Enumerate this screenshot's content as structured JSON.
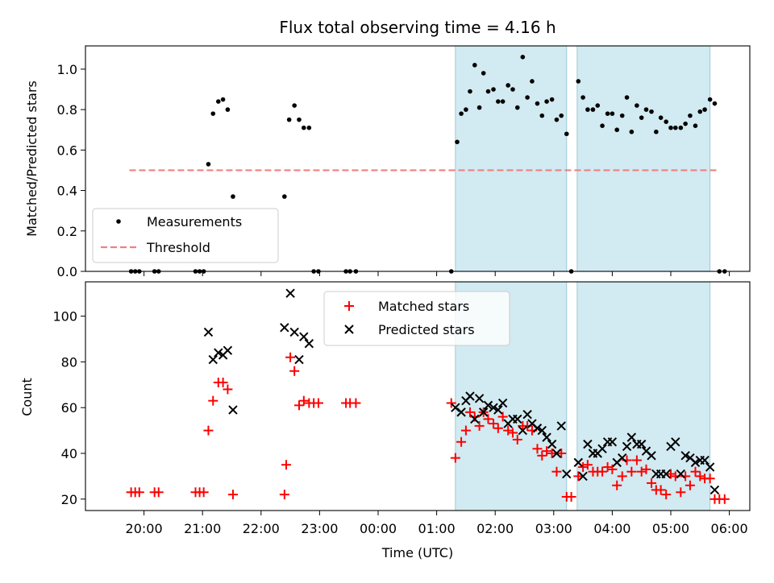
{
  "chart_data": {
    "title": "Flux total observing time = 4.16 h",
    "xlabel": "Time (UTC)",
    "x_ticks": [
      "20:00",
      "21:00",
      "22:00",
      "23:00",
      "00:00",
      "01:00",
      "02:00",
      "03:00",
      "04:00",
      "05:00",
      "06:00"
    ],
    "x_tick_hours": [
      20,
      21,
      22,
      23,
      24,
      25,
      26,
      27,
      28,
      29,
      30
    ],
    "xlim_hours": [
      19.0,
      30.35
    ],
    "shaded_intervals_hours": [
      [
        25.32,
        27.22
      ],
      [
        27.4,
        29.67
      ]
    ],
    "shade_color": "#add8e6",
    "panels": [
      {
        "id": "ratio",
        "type": "scatter",
        "ylabel": "Matched/Predicted stars",
        "ylim": [
          0,
          1.115
        ],
        "y_ticks": [
          0.0,
          0.2,
          0.4,
          0.6,
          0.8,
          1.0
        ],
        "y_tick_labels": [
          "0.0",
          "0.2",
          "0.4",
          "0.6",
          "0.8",
          "1.0"
        ],
        "legend_position": "lower-left",
        "threshold": {
          "name": "Threshold",
          "value": 0.5,
          "x_range": [
            19.75,
            29.83
          ],
          "color": "#f08080"
        },
        "measurements": {
          "name": "Measurements",
          "color": "#000000",
          "points": [
            [
              19.78,
              0
            ],
            [
              19.85,
              0
            ],
            [
              19.92,
              0
            ],
            [
              20.18,
              0
            ],
            [
              20.25,
              0
            ],
            [
              20.88,
              0
            ],
            [
              20.95,
              0
            ],
            [
              21.02,
              0
            ],
            [
              21.1,
              0.53
            ],
            [
              21.18,
              0.78
            ],
            [
              21.27,
              0.84
            ],
            [
              21.35,
              0.85
            ],
            [
              21.43,
              0.8
            ],
            [
              21.52,
              0.37
            ],
            [
              22.4,
              0.37
            ],
            [
              22.48,
              0.75
            ],
            [
              22.57,
              0.82
            ],
            [
              22.65,
              0.75
            ],
            [
              22.73,
              0.71
            ],
            [
              22.82,
              0.71
            ],
            [
              22.9,
              0
            ],
            [
              22.98,
              0
            ],
            [
              23.45,
              0
            ],
            [
              23.52,
              0
            ],
            [
              23.62,
              0
            ],
            [
              25.25,
              0
            ],
            [
              25.35,
              0.64
            ],
            [
              25.42,
              0.78
            ],
            [
              25.5,
              0.8
            ],
            [
              25.57,
              0.89
            ],
            [
              25.65,
              1.02
            ],
            [
              25.73,
              0.81
            ],
            [
              25.8,
              0.98
            ],
            [
              25.88,
              0.89
            ],
            [
              25.97,
              0.9
            ],
            [
              26.05,
              0.84
            ],
            [
              26.13,
              0.84
            ],
            [
              26.22,
              0.92
            ],
            [
              26.3,
              0.9
            ],
            [
              26.38,
              0.81
            ],
            [
              26.47,
              1.06
            ],
            [
              26.55,
              0.86
            ],
            [
              26.63,
              0.94
            ],
            [
              26.72,
              0.83
            ],
            [
              26.8,
              0.77
            ],
            [
              26.88,
              0.84
            ],
            [
              26.97,
              0.85
            ],
            [
              27.05,
              0.75
            ],
            [
              27.13,
              0.77
            ],
            [
              27.22,
              0.68
            ],
            [
              27.3,
              0
            ],
            [
              27.42,
              0.94
            ],
            [
              27.5,
              0.86
            ],
            [
              27.58,
              0.8
            ],
            [
              27.67,
              0.8
            ],
            [
              27.75,
              0.82
            ],
            [
              27.83,
              0.72
            ],
            [
              27.92,
              0.78
            ],
            [
              28.0,
              0.78
            ],
            [
              28.08,
              0.7
            ],
            [
              28.17,
              0.77
            ],
            [
              28.25,
              0.86
            ],
            [
              28.33,
              0.69
            ],
            [
              28.42,
              0.82
            ],
            [
              28.5,
              0.76
            ],
            [
              28.58,
              0.8
            ],
            [
              28.67,
              0.79
            ],
            [
              28.75,
              0.69
            ],
            [
              28.83,
              0.76
            ],
            [
              28.92,
              0.74
            ],
            [
              29.0,
              0.71
            ],
            [
              29.08,
              0.71
            ],
            [
              29.17,
              0.71
            ],
            [
              29.25,
              0.73
            ],
            [
              29.33,
              0.77
            ],
            [
              29.42,
              0.72
            ],
            [
              29.5,
              0.79
            ],
            [
              29.58,
              0.8
            ],
            [
              29.67,
              0.85
            ],
            [
              29.75,
              0.83
            ],
            [
              29.83,
              0
            ],
            [
              29.92,
              0
            ]
          ]
        }
      },
      {
        "id": "count",
        "type": "scatter",
        "ylabel": "Count",
        "ylim": [
          15,
          115
        ],
        "y_ticks": [
          20,
          40,
          60,
          80,
          100
        ],
        "y_tick_labels": [
          "20",
          "40",
          "60",
          "80",
          "100"
        ],
        "legend_position": "top-center",
        "matched": {
          "name": "Matched stars",
          "color": "#ff0000",
          "points": [
            [
              19.78,
              23
            ],
            [
              19.85,
              23
            ],
            [
              19.92,
              23
            ],
            [
              20.18,
              23
            ],
            [
              20.25,
              23
            ],
            [
              20.88,
              23
            ],
            [
              20.95,
              23
            ],
            [
              21.02,
              23
            ],
            [
              21.1,
              50
            ],
            [
              21.18,
              63
            ],
            [
              21.27,
              71
            ],
            [
              21.35,
              71
            ],
            [
              21.43,
              68
            ],
            [
              21.52,
              22
            ],
            [
              22.4,
              22
            ],
            [
              22.43,
              35
            ],
            [
              22.5,
              82
            ],
            [
              22.57,
              76
            ],
            [
              22.65,
              61
            ],
            [
              22.73,
              63
            ],
            [
              22.82,
              62
            ],
            [
              22.9,
              62
            ],
            [
              22.98,
              62
            ],
            [
              23.45,
              62
            ],
            [
              23.52,
              62
            ],
            [
              23.62,
              62
            ],
            [
              25.25,
              62
            ],
            [
              25.32,
              38
            ],
            [
              25.42,
              45
            ],
            [
              25.5,
              50
            ],
            [
              25.57,
              58
            ],
            [
              25.65,
              56
            ],
            [
              25.73,
              52
            ],
            [
              25.8,
              58
            ],
            [
              25.88,
              55
            ],
            [
              25.97,
              53
            ],
            [
              26.05,
              51
            ],
            [
              26.13,
              56
            ],
            [
              26.22,
              50
            ],
            [
              26.3,
              49
            ],
            [
              26.38,
              46
            ],
            [
              26.47,
              52
            ],
            [
              26.55,
              52
            ],
            [
              26.63,
              50
            ],
            [
              26.72,
              42
            ],
            [
              26.8,
              39
            ],
            [
              26.88,
              41
            ],
            [
              26.97,
              40
            ],
            [
              27.05,
              32
            ],
            [
              27.13,
              40
            ],
            [
              27.22,
              21
            ],
            [
              27.3,
              21
            ],
            [
              27.42,
              30
            ],
            [
              27.5,
              34
            ],
            [
              27.58,
              35
            ],
            [
              27.67,
              32
            ],
            [
              27.75,
              32
            ],
            [
              27.83,
              32
            ],
            [
              27.92,
              34
            ],
            [
              28.0,
              33
            ],
            [
              28.08,
              26
            ],
            [
              28.17,
              30
            ],
            [
              28.25,
              37
            ],
            [
              28.33,
              32
            ],
            [
              28.42,
              37
            ],
            [
              28.5,
              32
            ],
            [
              28.58,
              33
            ],
            [
              28.67,
              27
            ],
            [
              28.75,
              24
            ],
            [
              28.83,
              24
            ],
            [
              28.92,
              22
            ],
            [
              29.0,
              31
            ],
            [
              29.08,
              30
            ],
            [
              29.17,
              23
            ],
            [
              29.25,
              30
            ],
            [
              29.33,
              26
            ],
            [
              29.42,
              32
            ],
            [
              29.5,
              30
            ],
            [
              29.58,
              29
            ],
            [
              29.67,
              29
            ],
            [
              29.75,
              20
            ],
            [
              29.83,
              20
            ],
            [
              29.92,
              20
            ]
          ]
        },
        "predicted": {
          "name": "Predicted stars",
          "color": "#000000",
          "points": [
            [
              21.1,
              93
            ],
            [
              21.18,
              81
            ],
            [
              21.27,
              84
            ],
            [
              21.35,
              83
            ],
            [
              21.43,
              85
            ],
            [
              21.52,
              59
            ],
            [
              22.4,
              95
            ],
            [
              22.5,
              110
            ],
            [
              22.57,
              93
            ],
            [
              22.65,
              81
            ],
            [
              22.73,
              91
            ],
            [
              22.82,
              88
            ],
            [
              25.32,
              60
            ],
            [
              25.42,
              58
            ],
            [
              25.5,
              63
            ],
            [
              25.57,
              65
            ],
            [
              25.65,
              55
            ],
            [
              25.73,
              64
            ],
            [
              25.8,
              58
            ],
            [
              25.88,
              61
            ],
            [
              25.97,
              60
            ],
            [
              26.05,
              59
            ],
            [
              26.13,
              62
            ],
            [
              26.22,
              53
            ],
            [
              26.3,
              55
            ],
            [
              26.38,
              55
            ],
            [
              26.47,
              50
            ],
            [
              26.55,
              57
            ],
            [
              26.63,
              53
            ],
            [
              26.72,
              51
            ],
            [
              26.8,
              50
            ],
            [
              26.88,
              47
            ],
            [
              26.97,
              44
            ],
            [
              27.05,
              40
            ],
            [
              27.13,
              52
            ],
            [
              27.22,
              31
            ],
            [
              27.42,
              36
            ],
            [
              27.5,
              30
            ],
            [
              27.58,
              44
            ],
            [
              27.67,
              40
            ],
            [
              27.75,
              40
            ],
            [
              27.83,
              42
            ],
            [
              27.92,
              45
            ],
            [
              28.0,
              45
            ],
            [
              28.08,
              36
            ],
            [
              28.17,
              38
            ],
            [
              28.25,
              43
            ],
            [
              28.33,
              47
            ],
            [
              28.42,
              44
            ],
            [
              28.5,
              44
            ],
            [
              28.58,
              41
            ],
            [
              28.67,
              39
            ],
            [
              28.75,
              31
            ],
            [
              28.83,
              31
            ],
            [
              28.92,
              31
            ],
            [
              29.0,
              43
            ],
            [
              29.08,
              45
            ],
            [
              29.17,
              31
            ],
            [
              29.25,
              39
            ],
            [
              29.33,
              38
            ],
            [
              29.42,
              36
            ],
            [
              29.5,
              37
            ],
            [
              29.58,
              37
            ],
            [
              29.67,
              34
            ],
            [
              29.75,
              24
            ]
          ]
        }
      }
    ]
  }
}
